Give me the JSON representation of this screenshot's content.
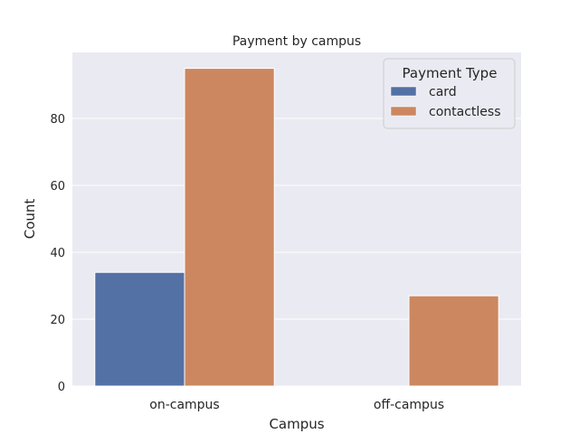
{
  "chart_data": {
    "type": "bar",
    "title": "Payment by campus",
    "xlabel": "Campus",
    "ylabel": "Count",
    "categories": [
      "on-campus",
      "off-campus"
    ],
    "series": [
      {
        "name": "card",
        "values": [
          34,
          0
        ],
        "color": "#5471a6"
      },
      {
        "name": "contactless",
        "values": [
          95,
          27
        ],
        "color": "#cc8760"
      }
    ],
    "ylim": [
      0,
      99.75
    ],
    "yticks": [
      0,
      20,
      40,
      60,
      80
    ],
    "grid": true,
    "legend": {
      "title": "Payment Type",
      "position": "top-right"
    },
    "background": "#eaeaf2"
  }
}
